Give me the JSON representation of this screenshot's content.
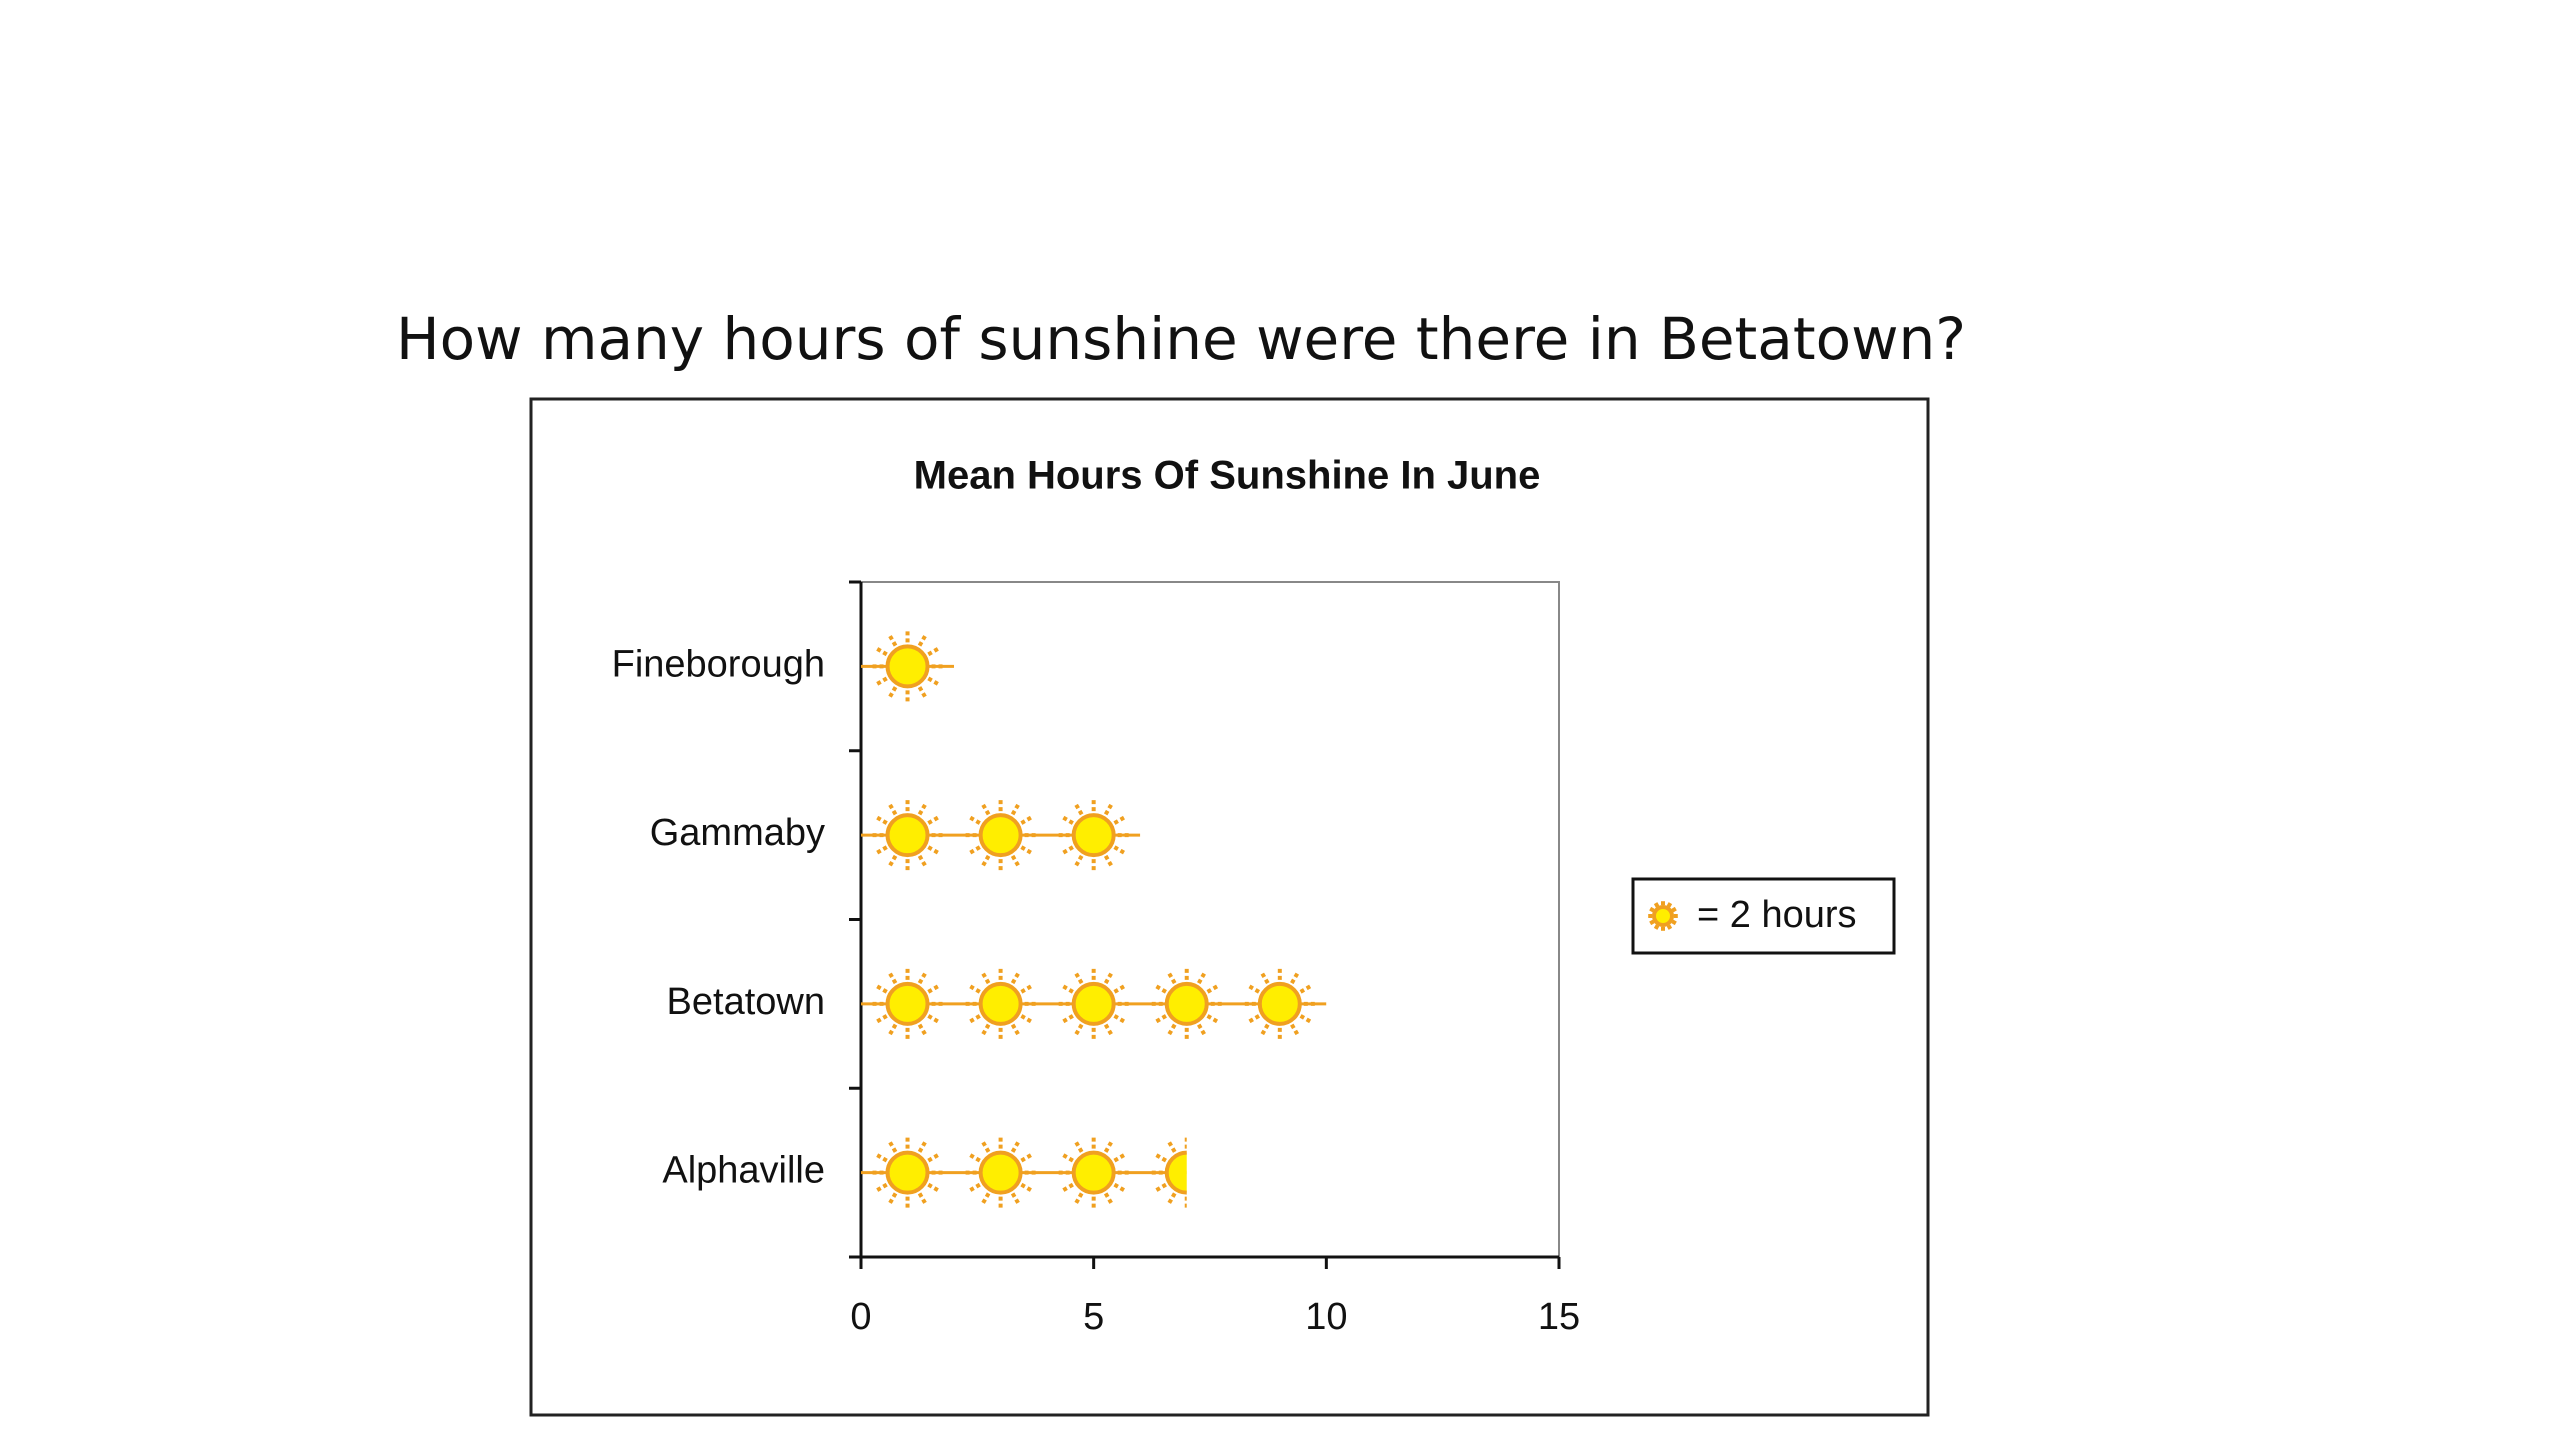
{
  "question": "How many hours of sunshine were there in Betatown?",
  "chart_data": {
    "type": "pictograph",
    "title": "Mean Hours Of Sunshine In June",
    "categories": [
      "Fineborough",
      "Gammaby",
      "Betatown",
      "Alphaville"
    ],
    "values": [
      2,
      6,
      10,
      7
    ],
    "symbol_value": 2,
    "legend_label": "= 2 hours",
    "color": "#ffee00",
    "edge_color": "#f0a020",
    "xlim": [
      0,
      15
    ],
    "xticks": [
      0,
      5,
      10,
      15
    ]
  }
}
